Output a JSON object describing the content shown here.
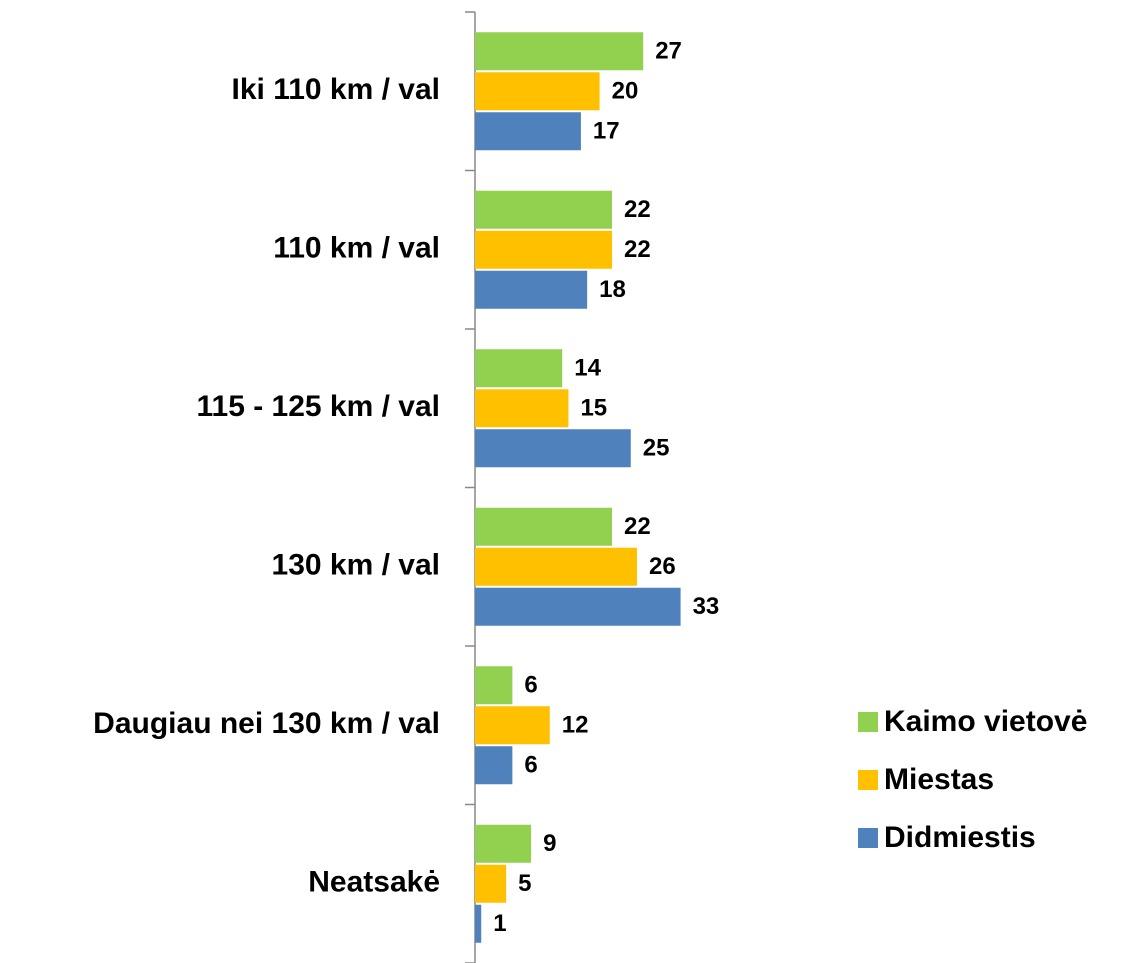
{
  "chart_data": {
    "type": "bar",
    "orientation": "horizontal",
    "categories": [
      "Iki 110 km / val",
      "110 km / val",
      "115 - 125 km / val",
      "130 km / val",
      "Daugiau nei 130 km / val",
      "Neatsakė"
    ],
    "series": [
      {
        "name": "Kaimo vietovė",
        "color": "#92d050",
        "values": [
          27,
          22,
          14,
          22,
          6,
          9
        ]
      },
      {
        "name": "Miestas",
        "color": "#ffc000",
        "values": [
          20,
          22,
          15,
          26,
          12,
          5
        ]
      },
      {
        "name": "Didmiestis",
        "color": "#4f81bd",
        "values": [
          17,
          18,
          25,
          33,
          6,
          1
        ]
      }
    ],
    "legend": "right"
  }
}
